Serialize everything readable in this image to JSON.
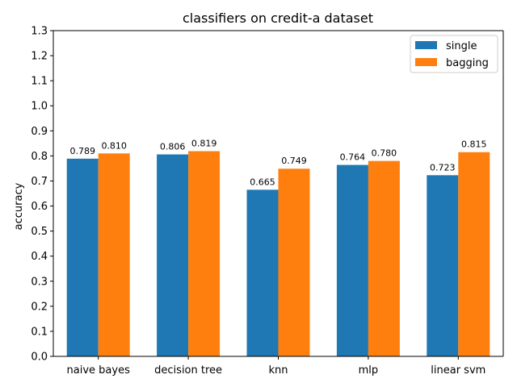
{
  "chart_data": {
    "type": "bar",
    "title": "classifiers on credit-a dataset",
    "xlabel": "",
    "ylabel": "accuracy",
    "categories": [
      "naive bayes",
      "decision tree",
      "knn",
      "mlp",
      "linear svm"
    ],
    "series": [
      {
        "name": "single",
        "color": "#1f77b4",
        "values": [
          0.789,
          0.806,
          0.665,
          0.764,
          0.723
        ],
        "labels": [
          "0.789",
          "0.806",
          "0.665",
          "0.764",
          "0.723"
        ]
      },
      {
        "name": "bagging",
        "color": "#ff7f0e",
        "values": [
          0.81,
          0.819,
          0.749,
          0.78,
          0.815
        ],
        "labels": [
          "0.810",
          "0.819",
          "0.749",
          "0.780",
          "0.815"
        ]
      }
    ],
    "ylim": [
      0,
      1.3
    ],
    "yticks": [
      "0.0",
      "0.1",
      "0.2",
      "0.3",
      "0.4",
      "0.5",
      "0.6",
      "0.7",
      "0.8",
      "0.9",
      "1.0",
      "1.1",
      "1.2",
      "1.3"
    ],
    "grid": false,
    "legend_position": "top-right"
  }
}
